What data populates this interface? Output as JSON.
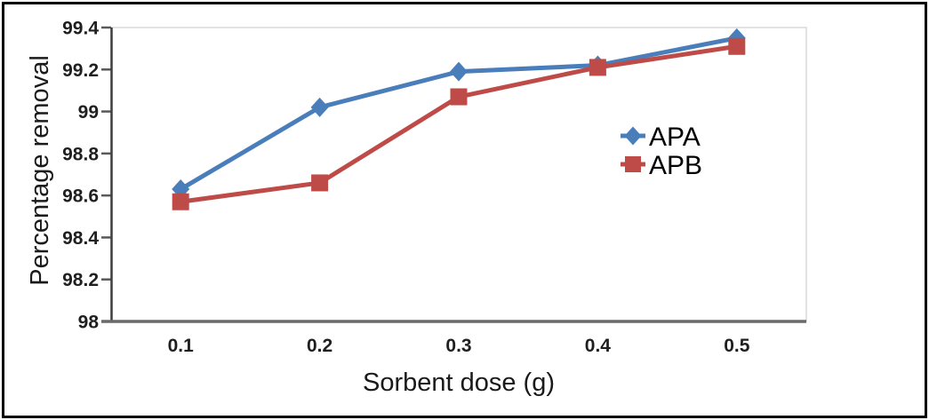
{
  "chart_data": {
    "type": "line",
    "title": "",
    "xlabel": "Sorbent dose (g)",
    "ylabel": "Percentage removal",
    "categories": [
      "0.1",
      "0.2",
      "0.3",
      "0.4",
      "0.5"
    ],
    "series": [
      {
        "name": "APA",
        "marker": "diamond",
        "color": "#4a7ebb",
        "values": [
          98.63,
          99.02,
          99.19,
          99.22,
          99.35
        ]
      },
      {
        "name": "APB",
        "marker": "square",
        "color": "#be4b48",
        "values": [
          98.57,
          98.66,
          99.07,
          99.21,
          99.31
        ]
      }
    ],
    "ylim": [
      98,
      99.4
    ],
    "yticks": [
      "98",
      "98.2",
      "98.4",
      "98.6",
      "98.8",
      "99",
      "99.2",
      "99.4"
    ],
    "grid": false,
    "legend_position": "inside-right"
  },
  "colors": {
    "background": "#ffffff",
    "frame_border": "#000000",
    "plot_border": "#d9d9d9",
    "y_axis_line": "#3f3f3f",
    "x_axis_line": "#6a6a6a",
    "tick_mark": "#595959",
    "tick_text": "#1f1f1f",
    "title_text": "#1a1a1a",
    "legend_text": "#000000"
  }
}
